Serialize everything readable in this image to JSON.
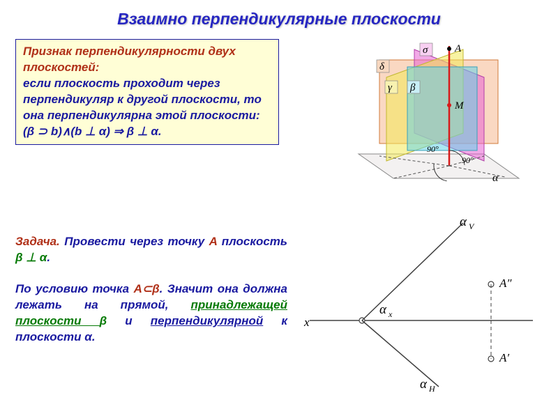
{
  "colors": {
    "title": "#2626c2",
    "boxBorder": "#1a1aa0",
    "boxBg": "#fffed6",
    "theoremHead": "#b03018",
    "theoremBody": "#1a1aa0",
    "theoremFormula": "#1a1aa0",
    "taskLabel": "#b03018",
    "taskA": "#b03018",
    "taskBeta": "#067a06",
    "taskAlpha": "#1a1aa0",
    "bodyText": "#1a1aa0"
  },
  "title": "Взаимно перпендикулярные плоскости",
  "theorem": {
    "head": "Признак перпендикулярности двух плоскостей:",
    "body": "если плоскость проходит через перпендикуляр к другой плоскости, то она перпендикулярна этой плоскости:",
    "formula": "(β ⊃ b)∧(b ⊥ α) ⇒ β ⊥ α."
  },
  "task": {
    "label": "Задача.",
    "p1_a": " Провести через точку ",
    "p1_b": "A",
    "p1_c": " плоскость ",
    "p1_d": "β ⊥ α",
    "p1_e": ".",
    "p2_a": "По условию точка ",
    "p2_b": "A⊂β",
    "p2_c": ". Значит она должна лежать на прямой, ",
    "p2_d": "принадлежащей плоскости ",
    "p2_e": "β",
    "p2_f": " и ",
    "p2_g": "перпендикулярной",
    "p2_h": " к плоскости ",
    "p2_i": "α",
    "p2_j": "."
  },
  "topDiagram": {
    "labels": {
      "sigma": "σ",
      "delta": "δ",
      "gamma": "γ",
      "beta": "β",
      "alpha": "α",
      "A": "A",
      "M": "M",
      "ninety": "90°"
    },
    "planes": {
      "alpha_fill": "#f2f0f0",
      "alpha_stroke": "#888888",
      "delta_fill": "#f5b890",
      "delta_stroke": "#d07a3a",
      "sigma_fill": "#e862d4",
      "sigma_stroke": "#b040a8",
      "gamma_fill": "#f3ea58",
      "gamma_stroke": "#c2b830",
      "beta_fill": "#64d4e8",
      "beta_stroke": "#3aa0b8",
      "axis_stroke": "#d81a1a"
    },
    "font": {
      "label": 15,
      "greek": 16
    }
  },
  "bottomDiagram": {
    "labels": {
      "x": "x",
      "alphaX": "αₓ",
      "alphaV": "αᵥ",
      "alphaH": "αₕ",
      "A1": "A′",
      "A2": "A″"
    },
    "stroke": "#404040",
    "thin": "#606060",
    "font": {
      "label": 17,
      "sub": 19
    }
  }
}
